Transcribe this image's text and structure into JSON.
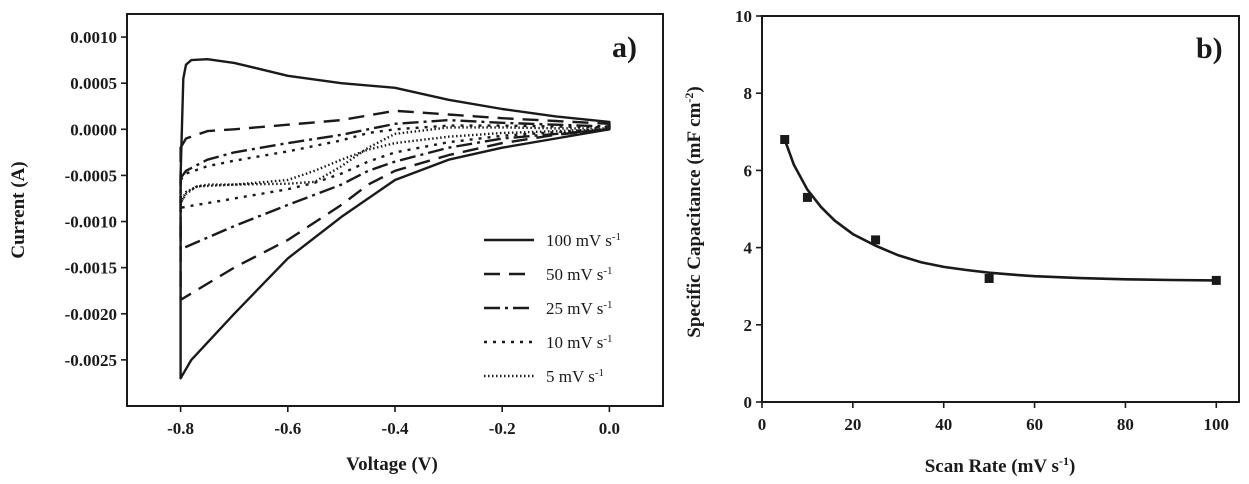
{
  "chart_data": [
    {
      "type": "line",
      "panel_label": "a)",
      "xlabel": "Voltage (V)",
      "ylabel": "Current (A)",
      "xlim": [
        -0.9,
        0.1
      ],
      "ylim": [
        -0.003,
        0.00125
      ],
      "xticks": [
        -0.8,
        -0.6,
        -0.4,
        -0.2,
        0.0
      ],
      "xtick_labels": [
        "-0.8",
        "-0.6",
        "-0.4",
        "-0.2",
        "0.0"
      ],
      "yticks": [
        0.001,
        0.0005,
        0.0,
        -0.0005,
        -0.001,
        -0.0015,
        -0.002,
        -0.0025
      ],
      "ytick_labels": [
        "0.0010",
        "0.0005",
        "0.0000",
        "-0.0005",
        "-0.0010",
        "-0.0015",
        "-0.0020",
        "-0.0025"
      ],
      "legend_position": "bottom-right",
      "series": [
        {
          "name": "100 mV s",
          "sup": "-1",
          "dash": "",
          "x": [
            -0.8,
            -0.795,
            -0.79,
            -0.78,
            -0.75,
            -0.7,
            -0.6,
            -0.5,
            -0.4,
            -0.3,
            -0.2,
            -0.1,
            0.0,
            0.0,
            -0.1,
            -0.2,
            -0.3,
            -0.4,
            -0.5,
            -0.6,
            -0.7,
            -0.78,
            -0.8,
            -0.8
          ],
          "y": [
            -0.0005,
            0.00055,
            0.0007,
            0.00075,
            0.00076,
            0.00072,
            0.00058,
            0.0005,
            0.00045,
            0.00032,
            0.00022,
            0.00014,
            8e-05,
            0.0,
            -0.0001,
            -0.0002,
            -0.00033,
            -0.00055,
            -0.00095,
            -0.0014,
            -0.002,
            -0.0025,
            -0.0027,
            -0.0005
          ]
        },
        {
          "name": "50 mV s",
          "sup": "-1",
          "dash": "16,9",
          "x": [
            -0.8,
            -0.79,
            -0.75,
            -0.7,
            -0.6,
            -0.5,
            -0.4,
            -0.3,
            -0.2,
            -0.1,
            0.0,
            0.0,
            -0.1,
            -0.2,
            -0.3,
            -0.4,
            -0.45,
            -0.5,
            -0.6,
            -0.7,
            -0.8
          ],
          "y": [
            -0.0002,
            -0.0001,
            -2e-05,
            0.0,
            5e-05,
            0.0001,
            0.0002,
            0.00016,
            0.00012,
            9e-05,
            6e-05,
            0.0,
            -6e-05,
            -0.00015,
            -0.00028,
            -0.00045,
            -0.0006,
            -0.00082,
            -0.0012,
            -0.0015,
            -0.00185
          ]
        },
        {
          "name": "25 mV s",
          "sup": "-1",
          "dash": "16,5,3,5",
          "x": [
            -0.8,
            -0.79,
            -0.75,
            -0.7,
            -0.6,
            -0.5,
            -0.45,
            -0.4,
            -0.3,
            -0.2,
            -0.1,
            0.0,
            0.0,
            -0.1,
            -0.2,
            -0.3,
            -0.4,
            -0.45,
            -0.5,
            -0.6,
            -0.7,
            -0.8
          ],
          "y": [
            -0.00053,
            -0.00045,
            -0.00033,
            -0.00025,
            -0.00015,
            -6e-05,
            0.0,
            6e-05,
            0.0001,
            7e-05,
            5e-05,
            3e-05,
            0.0,
            -5e-05,
            -0.0001,
            -0.0002,
            -0.00035,
            -0.00045,
            -0.0006,
            -0.00082,
            -0.00105,
            -0.0013
          ]
        },
        {
          "name": "10 mV s",
          "sup": "-1",
          "dash": "3,6",
          "x": [
            -0.8,
            -0.79,
            -0.75,
            -0.7,
            -0.6,
            -0.5,
            -0.45,
            -0.4,
            -0.3,
            -0.2,
            -0.1,
            0.0,
            0.0,
            -0.1,
            -0.2,
            -0.3,
            -0.4,
            -0.45,
            -0.5,
            -0.55,
            -0.6,
            -0.7,
            -0.8
          ],
          "y": [
            -0.00055,
            -0.00048,
            -0.0004,
            -0.00034,
            -0.00024,
            -0.00012,
            -4e-05,
            0.0,
            4e-05,
            4e-05,
            3e-05,
            2e-05,
            0.0,
            -3e-05,
            -7e-05,
            -0.00014,
            -0.00025,
            -0.00035,
            -0.00048,
            -0.00058,
            -0.00065,
            -0.00075,
            -0.00085
          ]
        },
        {
          "name": "5 mV s",
          "sup": "-1",
          "dash": "1.5,2.5",
          "x": [
            -0.8,
            -0.79,
            -0.77,
            -0.75,
            -0.7,
            -0.6,
            -0.55,
            -0.5,
            -0.45,
            -0.4,
            -0.3,
            -0.2,
            -0.1,
            0.0,
            0.0,
            -0.1,
            -0.2,
            -0.3,
            -0.4,
            -0.45,
            -0.5,
            -0.55,
            -0.6,
            -0.7,
            -0.77,
            -0.79,
            -0.8
          ],
          "y": [
            -0.0008,
            -0.00068,
            -0.00062,
            -0.0006,
            -0.0006,
            -0.00059,
            -0.00057,
            -0.0004,
            -0.0002,
            -5e-05,
            2e-05,
            2e-05,
            1e-05,
            1e-05,
            0.0,
            -2e-05,
            -4e-05,
            -8e-05,
            -0.00015,
            -0.00022,
            -0.00033,
            -0.00045,
            -0.00055,
            -0.0006,
            -0.00062,
            -0.0007,
            -0.0008
          ]
        }
      ]
    },
    {
      "type": "scatter",
      "panel_label": "b)",
      "xlabel": "Scan Rate (mV s",
      "xlabel_sup": "-1",
      "xlabel_end": ")",
      "ylabel": "Specific Capacitance (mF cm",
      "ylabel_sup": "-2",
      "ylabel_end": ")",
      "xlim": [
        0,
        105
      ],
      "ylim": [
        0,
        10
      ],
      "xticks": [
        0,
        20,
        40,
        60,
        80,
        100
      ],
      "xtick_labels": [
        "0",
        "20",
        "40",
        "60",
        "80",
        "100"
      ],
      "yticks": [
        0,
        2,
        4,
        6,
        8,
        10
      ],
      "ytick_labels": [
        "0",
        "2",
        "4",
        "6",
        "8",
        "10"
      ],
      "points": {
        "x": [
          5,
          10,
          25,
          50,
          100
        ],
        "y": [
          6.8,
          5.3,
          4.2,
          3.2,
          3.15
        ]
      },
      "fit": {
        "x": [
          5,
          7,
          10,
          13,
          16,
          20,
          25,
          30,
          35,
          40,
          45,
          50,
          55,
          60,
          70,
          80,
          90,
          100
        ],
        "y": [
          6.8,
          6.15,
          5.5,
          5.05,
          4.7,
          4.35,
          4.05,
          3.8,
          3.62,
          3.5,
          3.42,
          3.35,
          3.3,
          3.26,
          3.21,
          3.18,
          3.16,
          3.15
        ]
      }
    }
  ]
}
